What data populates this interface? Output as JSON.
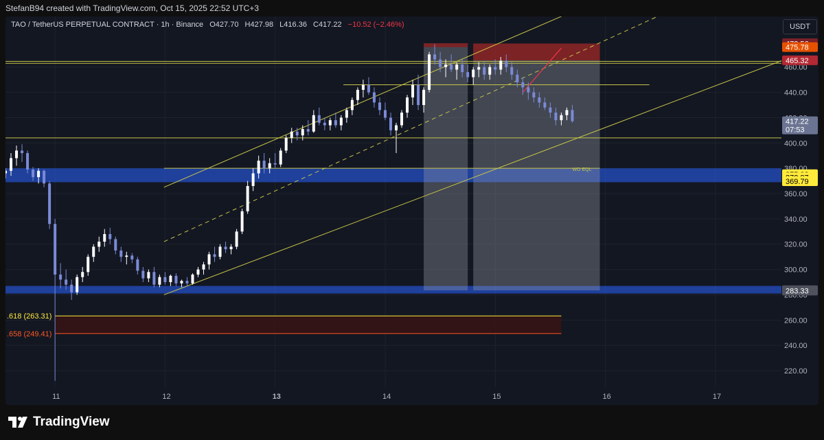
{
  "header": {
    "credit": "StefanB94 created with TradingView.com, Oct 15, 2025 22:52 UTC+3"
  },
  "legend": {
    "symbol": "TAO / TetherUS PERPETUAL CONTRACT · 1h · Binance",
    "open": "O427.70",
    "high": "H427.98",
    "low": "L416.36",
    "close": "C417.22",
    "change": "−10.52 (−2.46%)"
  },
  "currency_button": "USDT",
  "brand": "TradingView",
  "colors": {
    "bull": "#ffffff",
    "bear": "#7b8ad6",
    "channel": "#c6c447",
    "zone_blue": "#2962ff",
    "stop_red": "#8b1a1a",
    "grid": "#1e222d",
    "background": "#131722"
  },
  "chart_data": {
    "type": "candlestick",
    "title": "TAO / TetherUS PERPETUAL CONTRACT · 1h · Binance",
    "x_ticks": [
      "11",
      "12",
      "13",
      "14",
      "15",
      "16",
      "17"
    ],
    "y_ticks": [
      220,
      240,
      260,
      280,
      300,
      320,
      340,
      360,
      380,
      400,
      420,
      440,
      460
    ],
    "y_tick_labels": [
      "220.00",
      "240.00",
      "260.00",
      "280.00",
      "300.00",
      "320.00",
      "340.00",
      "360.00",
      "380.00",
      "400.00",
      "420.00",
      "440.00",
      "460.00"
    ],
    "ylim": [
      207,
      500
    ],
    "xlim": [
      10.55,
      17.6
    ],
    "price_labels": [
      {
        "value": 478.79,
        "text": "478.79",
        "bg": "#b22833",
        "fg": "#ffffff"
      },
      {
        "value": 478.56,
        "text": "478.56",
        "bg": "#7a1f27",
        "fg": "#ffffff"
      },
      {
        "value": 475.78,
        "text": "475.78",
        "bg": "#e65100",
        "fg": "#ffffff"
      },
      {
        "value": 465.32,
        "text": "465.32",
        "bg": "#b22833",
        "fg": "#ffffff"
      },
      {
        "value": 417.22,
        "text": "417.22",
        "sub": "07:53",
        "bg": "#6b7492",
        "fg": "#ffffff"
      },
      {
        "value": 375.33,
        "text": "375.33",
        "bg": "#ffeb3b",
        "fg": "#000000"
      },
      {
        "value": 372.87,
        "text": "372.87",
        "bg": "#ffeb3b",
        "fg": "#000000"
      },
      {
        "value": 369.79,
        "text": "369.79",
        "bg": "#ffeb3b",
        "fg": "#000000"
      },
      {
        "value": 283.65,
        "text": "283.65",
        "bg": "#50535e",
        "fg": "#ffffff"
      },
      {
        "value": 283.33,
        "text": "283.33",
        "bg": "#50535e",
        "fg": "#ffffff"
      }
    ],
    "fib_levels": [
      {
        "text": ".618 (263.31)",
        "value": 263.31,
        "color": "#ffeb3b"
      },
      {
        "text": ".658 (249.41)",
        "value": 249.41,
        "color": "#ff5722"
      }
    ],
    "annotation": "WO EQL",
    "ohlc": [
      {
        "t": 10.55,
        "o": 376,
        "h": 380,
        "l": 372,
        "c": 378
      },
      {
        "t": 10.6,
        "o": 378,
        "h": 392,
        "l": 374,
        "c": 388
      },
      {
        "t": 10.65,
        "o": 388,
        "h": 398,
        "l": 382,
        "c": 394
      },
      {
        "t": 10.7,
        "o": 394,
        "h": 399,
        "l": 385,
        "c": 392
      },
      {
        "t": 10.75,
        "o": 392,
        "h": 394,
        "l": 376,
        "c": 379
      },
      {
        "t": 10.8,
        "o": 379,
        "h": 381,
        "l": 370,
        "c": 373
      },
      {
        "t": 10.85,
        "o": 373,
        "h": 380,
        "l": 368,
        "c": 378
      },
      {
        "t": 10.9,
        "o": 378,
        "h": 379,
        "l": 365,
        "c": 368
      },
      {
        "t": 10.95,
        "o": 368,
        "h": 370,
        "l": 332,
        "c": 336
      },
      {
        "t": 11.0,
        "o": 336,
        "h": 340,
        "l": 212,
        "c": 296
      },
      {
        "t": 11.05,
        "o": 296,
        "h": 305,
        "l": 285,
        "c": 292
      },
      {
        "t": 11.1,
        "o": 292,
        "h": 300,
        "l": 284,
        "c": 288
      },
      {
        "t": 11.15,
        "o": 288,
        "h": 292,
        "l": 276,
        "c": 282
      },
      {
        "t": 11.2,
        "o": 282,
        "h": 296,
        "l": 280,
        "c": 294
      },
      {
        "t": 11.25,
        "o": 294,
        "h": 302,
        "l": 290,
        "c": 298
      },
      {
        "t": 11.3,
        "o": 298,
        "h": 312,
        "l": 295,
        "c": 310
      },
      {
        "t": 11.35,
        "o": 310,
        "h": 320,
        "l": 306,
        "c": 318
      },
      {
        "t": 11.4,
        "o": 318,
        "h": 326,
        "l": 314,
        "c": 322
      },
      {
        "t": 11.45,
        "o": 322,
        "h": 332,
        "l": 318,
        "c": 328
      },
      {
        "t": 11.5,
        "o": 328,
        "h": 333,
        "l": 320,
        "c": 324
      },
      {
        "t": 11.55,
        "o": 324,
        "h": 326,
        "l": 312,
        "c": 315
      },
      {
        "t": 11.6,
        "o": 315,
        "h": 318,
        "l": 306,
        "c": 310
      },
      {
        "t": 11.65,
        "o": 310,
        "h": 314,
        "l": 304,
        "c": 311
      },
      {
        "t": 11.7,
        "o": 311,
        "h": 313,
        "l": 305,
        "c": 308
      },
      {
        "t": 11.75,
        "o": 308,
        "h": 310,
        "l": 296,
        "c": 299
      },
      {
        "t": 11.8,
        "o": 299,
        "h": 302,
        "l": 290,
        "c": 293
      },
      {
        "t": 11.85,
        "o": 293,
        "h": 300,
        "l": 290,
        "c": 298
      },
      {
        "t": 11.9,
        "o": 298,
        "h": 302,
        "l": 286,
        "c": 288
      },
      {
        "t": 11.95,
        "o": 288,
        "h": 296,
        "l": 286,
        "c": 294
      },
      {
        "t": 12.0,
        "o": 294,
        "h": 298,
        "l": 288,
        "c": 290
      },
      {
        "t": 12.05,
        "o": 290,
        "h": 296,
        "l": 287,
        "c": 295
      },
      {
        "t": 12.1,
        "o": 295,
        "h": 297,
        "l": 287,
        "c": 289
      },
      {
        "t": 12.15,
        "o": 289,
        "h": 292,
        "l": 286,
        "c": 291
      },
      {
        "t": 12.2,
        "o": 291,
        "h": 294,
        "l": 287,
        "c": 289
      },
      {
        "t": 12.25,
        "o": 289,
        "h": 297,
        "l": 288,
        "c": 296
      },
      {
        "t": 12.3,
        "o": 296,
        "h": 302,
        "l": 294,
        "c": 300
      },
      {
        "t": 12.35,
        "o": 300,
        "h": 306,
        "l": 296,
        "c": 304
      },
      {
        "t": 12.4,
        "o": 304,
        "h": 314,
        "l": 300,
        "c": 312
      },
      {
        "t": 12.45,
        "o": 312,
        "h": 318,
        "l": 306,
        "c": 310
      },
      {
        "t": 12.5,
        "o": 310,
        "h": 320,
        "l": 308,
        "c": 318
      },
      {
        "t": 12.55,
        "o": 318,
        "h": 322,
        "l": 313,
        "c": 316
      },
      {
        "t": 12.6,
        "o": 316,
        "h": 320,
        "l": 312,
        "c": 318
      },
      {
        "t": 12.65,
        "o": 318,
        "h": 332,
        "l": 316,
        "c": 330
      },
      {
        "t": 12.7,
        "o": 330,
        "h": 348,
        "l": 328,
        "c": 346
      },
      {
        "t": 12.75,
        "o": 346,
        "h": 370,
        "l": 344,
        "c": 366
      },
      {
        "t": 12.8,
        "o": 366,
        "h": 380,
        "l": 362,
        "c": 376
      },
      {
        "t": 12.85,
        "o": 376,
        "h": 390,
        "l": 372,
        "c": 386
      },
      {
        "t": 12.9,
        "o": 386,
        "h": 392,
        "l": 376,
        "c": 380
      },
      {
        "t": 12.95,
        "o": 380,
        "h": 388,
        "l": 376,
        "c": 384
      },
      {
        "t": 13.0,
        "o": 384,
        "h": 392,
        "l": 380,
        "c": 383
      },
      {
        "t": 13.05,
        "o": 383,
        "h": 396,
        "l": 381,
        "c": 394
      },
      {
        "t": 13.1,
        "o": 394,
        "h": 406,
        "l": 392,
        "c": 404
      },
      {
        "t": 13.15,
        "o": 404,
        "h": 412,
        "l": 400,
        "c": 409
      },
      {
        "t": 13.2,
        "o": 409,
        "h": 412,
        "l": 402,
        "c": 406
      },
      {
        "t": 13.25,
        "o": 406,
        "h": 414,
        "l": 402,
        "c": 411
      },
      {
        "t": 13.3,
        "o": 411,
        "h": 418,
        "l": 406,
        "c": 409
      },
      {
        "t": 13.35,
        "o": 409,
        "h": 426,
        "l": 408,
        "c": 422
      },
      {
        "t": 13.4,
        "o": 422,
        "h": 428,
        "l": 414,
        "c": 416
      },
      {
        "t": 13.45,
        "o": 416,
        "h": 420,
        "l": 410,
        "c": 414
      },
      {
        "t": 13.5,
        "o": 414,
        "h": 420,
        "l": 410,
        "c": 418
      },
      {
        "t": 13.55,
        "o": 418,
        "h": 424,
        "l": 412,
        "c": 414
      },
      {
        "t": 13.6,
        "o": 414,
        "h": 422,
        "l": 410,
        "c": 420
      },
      {
        "t": 13.65,
        "o": 420,
        "h": 428,
        "l": 416,
        "c": 426
      },
      {
        "t": 13.7,
        "o": 426,
        "h": 436,
        "l": 422,
        "c": 434
      },
      {
        "t": 13.75,
        "o": 434,
        "h": 444,
        "l": 430,
        "c": 442
      },
      {
        "t": 13.8,
        "o": 442,
        "h": 450,
        "l": 436,
        "c": 446
      },
      {
        "t": 13.85,
        "o": 446,
        "h": 452,
        "l": 438,
        "c": 440
      },
      {
        "t": 13.9,
        "o": 440,
        "h": 444,
        "l": 428,
        "c": 432
      },
      {
        "t": 13.95,
        "o": 432,
        "h": 436,
        "l": 422,
        "c": 426
      },
      {
        "t": 14.0,
        "o": 426,
        "h": 432,
        "l": 418,
        "c": 420
      },
      {
        "t": 14.05,
        "o": 420,
        "h": 424,
        "l": 406,
        "c": 410
      },
      {
        "t": 14.1,
        "o": 410,
        "h": 416,
        "l": 392,
        "c": 414
      },
      {
        "t": 14.15,
        "o": 414,
        "h": 426,
        "l": 412,
        "c": 424
      },
      {
        "t": 14.2,
        "o": 424,
        "h": 438,
        "l": 420,
        "c": 436
      },
      {
        "t": 14.25,
        "o": 436,
        "h": 450,
        "l": 430,
        "c": 446
      },
      {
        "t": 14.3,
        "o": 446,
        "h": 454,
        "l": 426,
        "c": 430
      },
      {
        "t": 14.35,
        "o": 430,
        "h": 444,
        "l": 424,
        "c": 442
      },
      {
        "t": 14.4,
        "o": 442,
        "h": 472,
        "l": 440,
        "c": 470
      },
      {
        "t": 14.45,
        "o": 470,
        "h": 478,
        "l": 462,
        "c": 466
      },
      {
        "t": 14.5,
        "o": 466,
        "h": 472,
        "l": 456,
        "c": 460
      },
      {
        "t": 14.55,
        "o": 460,
        "h": 466,
        "l": 452,
        "c": 462
      },
      {
        "t": 14.6,
        "o": 462,
        "h": 470,
        "l": 456,
        "c": 458
      },
      {
        "t": 14.65,
        "o": 458,
        "h": 464,
        "l": 450,
        "c": 462
      },
      {
        "t": 14.7,
        "o": 462,
        "h": 466,
        "l": 452,
        "c": 456
      },
      {
        "t": 14.75,
        "o": 456,
        "h": 462,
        "l": 448,
        "c": 452
      },
      {
        "t": 14.8,
        "o": 452,
        "h": 460,
        "l": 446,
        "c": 458
      },
      {
        "t": 14.85,
        "o": 458,
        "h": 464,
        "l": 452,
        "c": 460
      },
      {
        "t": 14.9,
        "o": 460,
        "h": 464,
        "l": 450,
        "c": 454
      },
      {
        "t": 14.95,
        "o": 454,
        "h": 462,
        "l": 450,
        "c": 460
      },
      {
        "t": 15.0,
        "o": 460,
        "h": 466,
        "l": 454,
        "c": 458
      },
      {
        "t": 15.05,
        "o": 458,
        "h": 468,
        "l": 454,
        "c": 465
      },
      {
        "t": 15.1,
        "o": 465,
        "h": 470,
        "l": 456,
        "c": 460
      },
      {
        "t": 15.15,
        "o": 460,
        "h": 464,
        "l": 450,
        "c": 454
      },
      {
        "t": 15.2,
        "o": 454,
        "h": 458,
        "l": 444,
        "c": 448
      },
      {
        "t": 15.25,
        "o": 448,
        "h": 452,
        "l": 438,
        "c": 444
      },
      {
        "t": 15.3,
        "o": 444,
        "h": 448,
        "l": 434,
        "c": 440
      },
      {
        "t": 15.35,
        "o": 440,
        "h": 444,
        "l": 432,
        "c": 436
      },
      {
        "t": 15.4,
        "o": 436,
        "h": 440,
        "l": 428,
        "c": 432
      },
      {
        "t": 15.45,
        "o": 432,
        "h": 436,
        "l": 426,
        "c": 428
      },
      {
        "t": 15.5,
        "o": 428,
        "h": 432,
        "l": 420,
        "c": 424
      },
      {
        "t": 15.55,
        "o": 424,
        "h": 428,
        "l": 414,
        "c": 418
      },
      {
        "t": 15.6,
        "o": 418,
        "h": 424,
        "l": 414,
        "c": 422
      },
      {
        "t": 15.65,
        "o": 422,
        "h": 428,
        "l": 418,
        "c": 426
      },
      {
        "t": 15.7,
        "o": 426,
        "h": 430,
        "l": 416,
        "c": 417.22
      }
    ]
  }
}
